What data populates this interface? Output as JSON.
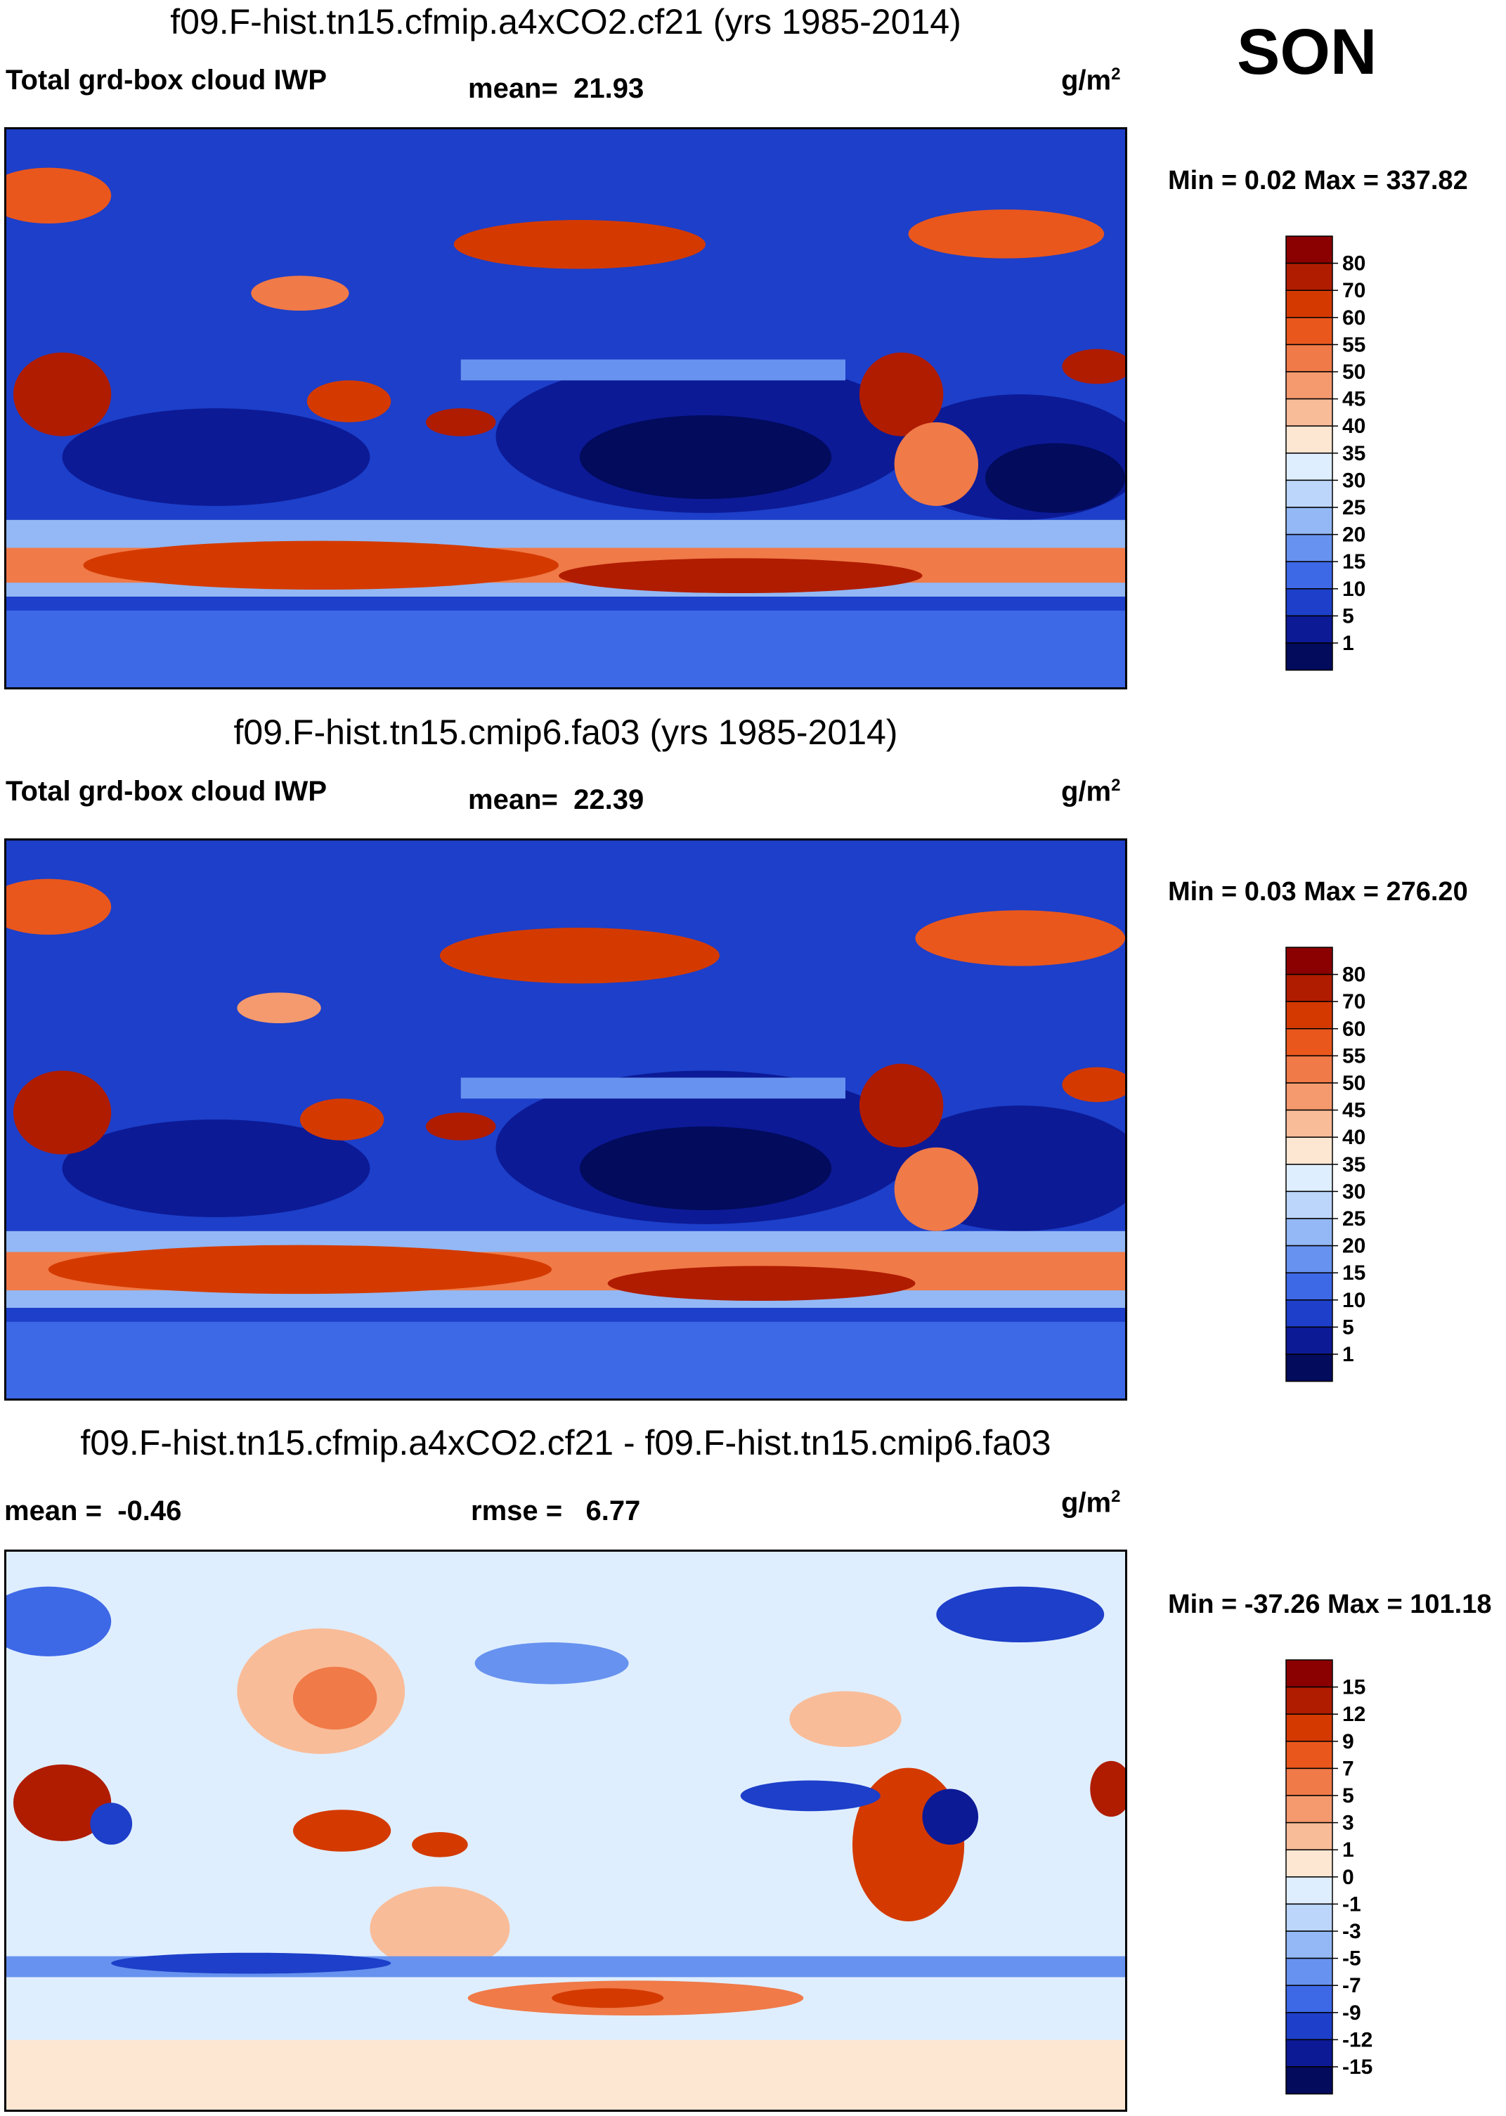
{
  "season": "SON",
  "units_base": "g/m",
  "units_exp": "2",
  "panels": [
    {
      "title": "f09.F-hist.tn15.cfmip.a4xCO2.cf21 (yrs 1985-2014)",
      "variable": "Total grd-box cloud IWP",
      "stat1_label": "mean=",
      "stat1_value": "21.93",
      "min_max": "Min =   0.02 Max = 337.82",
      "colorbar": {
        "levels": [
          "80",
          "70",
          "60",
          "55",
          "50",
          "45",
          "40",
          "35",
          "30",
          "25",
          "20",
          "15",
          "10",
          "5",
          "1"
        ],
        "colors": [
          "#8b0000",
          "#b01c00",
          "#d43a00",
          "#e9571d",
          "#f07a48",
          "#f59a6e",
          "#f9bc98",
          "#fde6d2",
          "#dfeeff",
          "#bcd6fb",
          "#93b8f5",
          "#6792ef",
          "#3d68e6",
          "#1d3fc9",
          "#0c1a96",
          "#020b5c"
        ]
      }
    },
    {
      "title": "f09.F-hist.tn15.cmip6.fa03 (yrs 1985-2014)",
      "variable": "Total grd-box cloud IWP",
      "stat1_label": "mean=",
      "stat1_value": "22.39",
      "min_max": "Min =   0.03 Max = 276.20",
      "colorbar": {
        "levels": [
          "80",
          "70",
          "60",
          "55",
          "50",
          "45",
          "40",
          "35",
          "30",
          "25",
          "20",
          "15",
          "10",
          "5",
          "1"
        ],
        "colors": [
          "#8b0000",
          "#b01c00",
          "#d43a00",
          "#e9571d",
          "#f07a48",
          "#f59a6e",
          "#f9bc98",
          "#fde6d2",
          "#dfeeff",
          "#bcd6fb",
          "#93b8f5",
          "#6792ef",
          "#3d68e6",
          "#1d3fc9",
          "#0c1a96",
          "#020b5c"
        ]
      }
    },
    {
      "title": "f09.F-hist.tn15.cfmip.a4xCO2.cf21 - f09.F-hist.tn15.cmip6.fa03",
      "stat1_label": "mean =",
      "stat1_value": "-0.46",
      "stat2_label": "rmse =",
      "stat2_value": "6.77",
      "min_max": "Min = -37.26 Max = 101.18",
      "colorbar": {
        "levels": [
          "15",
          "12",
          "9",
          "7",
          "5",
          "3",
          "1",
          "0",
          "-1",
          "-3",
          "-5",
          "-7",
          "-9",
          "-12",
          "-15"
        ],
        "colors": [
          "#8b0000",
          "#b01c00",
          "#d43a00",
          "#e9571d",
          "#f07a48",
          "#f59a6e",
          "#f9bc98",
          "#fde6d2",
          "#dfeeff",
          "#bcd6fb",
          "#93b8f5",
          "#6792ef",
          "#3d68e6",
          "#1d3fc9",
          "#0c1a96",
          "#020b5c"
        ]
      }
    }
  ]
}
